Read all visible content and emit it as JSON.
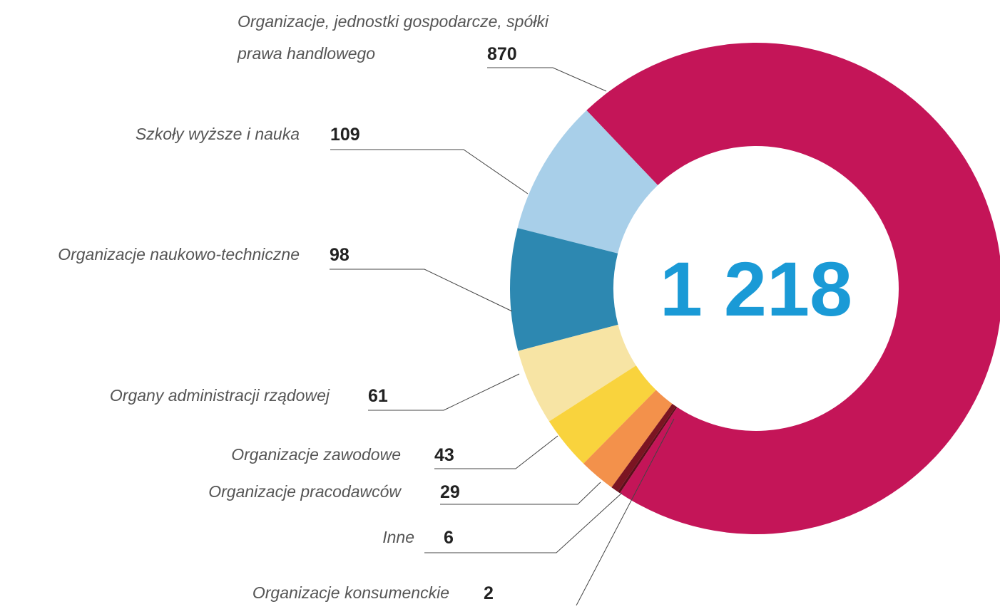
{
  "chart_data": {
    "type": "donut",
    "categories": [
      "Organizacje, jednostki gospodarcze, spółki prawa handlowego",
      "Szkoły wyższe i nauka",
      "Organizacje naukowo-techniczne",
      "Organy administracji rządowej",
      "Organizacje zawodowe",
      "Organizacje pracodawców",
      "Inne",
      "Organizacje konsumenckie"
    ],
    "values": [
      870,
      109,
      98,
      61,
      43,
      29,
      6,
      2
    ],
    "colors": [
      "#c41558",
      "#a8cfe9",
      "#2d88b1",
      "#f7e4a4",
      "#f9d33d",
      "#f3914b",
      "#7b1422",
      "#5c0e1a"
    ],
    "total": {
      "value": 1218,
      "label": "1 218"
    }
  }
}
